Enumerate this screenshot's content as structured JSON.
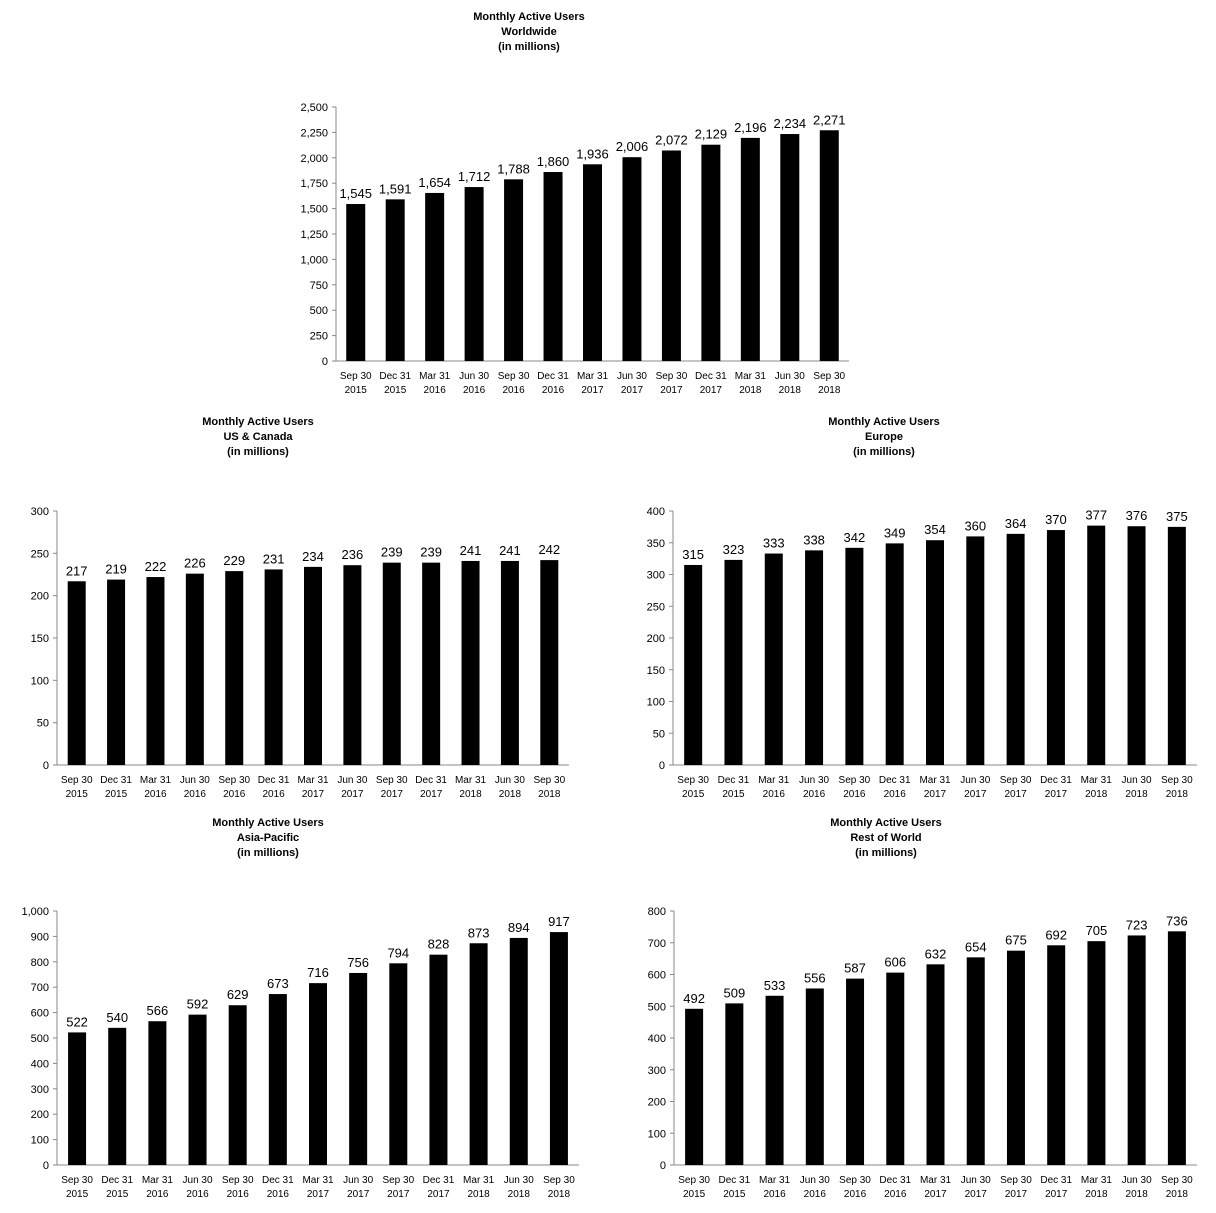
{
  "chart_data": [
    {
      "id": "worldwide",
      "type": "bar",
      "title": [
        "Monthly Active Users",
        "Worldwide",
        "(in millions)"
      ],
      "categories": [
        [
          "Sep 30",
          "2015"
        ],
        [
          "Dec 31",
          "2015"
        ],
        [
          "Mar 31",
          "2016"
        ],
        [
          "Jun 30",
          "2016"
        ],
        [
          "Sep 30",
          "2016"
        ],
        [
          "Dec 31",
          "2016"
        ],
        [
          "Mar 31",
          "2017"
        ],
        [
          "Jun 30",
          "2017"
        ],
        [
          "Sep 30",
          "2017"
        ],
        [
          "Dec 31",
          "2017"
        ],
        [
          "Mar 31",
          "2018"
        ],
        [
          "Jun 30",
          "2018"
        ],
        [
          "Sep 30",
          "2018"
        ]
      ],
      "values": [
        1545,
        1591,
        1654,
        1712,
        1788,
        1860,
        1936,
        2006,
        2072,
        2129,
        2196,
        2234,
        2271
      ],
      "value_labels": [
        "1,545",
        "1,591",
        "1,654",
        "1,712",
        "1,788",
        "1,860",
        "1,936",
        "2,006",
        "2,072",
        "2,129",
        "2,196",
        "2,234",
        "2,271"
      ],
      "ylim": [
        0,
        2500
      ],
      "yticks": [
        0,
        250,
        500,
        750,
        1000,
        1250,
        1500,
        1750,
        2000,
        2250,
        2500
      ],
      "ytick_labels": [
        "0",
        "250",
        "500",
        "750",
        "1,000",
        "1,250",
        "1,500",
        "1,750",
        "2,000",
        "2,250",
        "2,500"
      ],
      "grid": false,
      "bar_color": "#000000"
    },
    {
      "id": "us-canada",
      "type": "bar",
      "title": [
        "Monthly Active Users",
        "US & Canada",
        "(in millions)"
      ],
      "categories": [
        [
          "Sep 30",
          "2015"
        ],
        [
          "Dec 31",
          "2015"
        ],
        [
          "Mar 31",
          "2016"
        ],
        [
          "Jun 30",
          "2016"
        ],
        [
          "Sep 30",
          "2016"
        ],
        [
          "Dec 31",
          "2016"
        ],
        [
          "Mar 31",
          "2017"
        ],
        [
          "Jun 30",
          "2017"
        ],
        [
          "Sep 30",
          "2017"
        ],
        [
          "Dec 31",
          "2017"
        ],
        [
          "Mar 31",
          "2018"
        ],
        [
          "Jun 30",
          "2018"
        ],
        [
          "Sep 30",
          "2018"
        ]
      ],
      "values": [
        217,
        219,
        222,
        226,
        229,
        231,
        234,
        236,
        239,
        239,
        241,
        241,
        242
      ],
      "value_labels": [
        "217",
        "219",
        "222",
        "226",
        "229",
        "231",
        "234",
        "236",
        "239",
        "239",
        "241",
        "241",
        "242"
      ],
      "ylim": [
        0,
        300
      ],
      "yticks": [
        0,
        50,
        100,
        150,
        200,
        250,
        300
      ],
      "ytick_labels": [
        "0",
        "50",
        "100",
        "150",
        "200",
        "250",
        "300"
      ],
      "grid": false,
      "bar_color": "#000000"
    },
    {
      "id": "europe",
      "type": "bar",
      "title": [
        "Monthly Active Users",
        "Europe",
        "(in millions)"
      ],
      "categories": [
        [
          "Sep 30",
          "2015"
        ],
        [
          "Dec 31",
          "2015"
        ],
        [
          "Mar 31",
          "2016"
        ],
        [
          "Jun 30",
          "2016"
        ],
        [
          "Sep 30",
          "2016"
        ],
        [
          "Dec 31",
          "2016"
        ],
        [
          "Mar 31",
          "2017"
        ],
        [
          "Jun 30",
          "2017"
        ],
        [
          "Sep 30",
          "2017"
        ],
        [
          "Dec 31",
          "2017"
        ],
        [
          "Mar 31",
          "2018"
        ],
        [
          "Jun 30",
          "2018"
        ],
        [
          "Sep 30",
          "2018"
        ]
      ],
      "values": [
        315,
        323,
        333,
        338,
        342,
        349,
        354,
        360,
        364,
        370,
        377,
        376,
        375
      ],
      "value_labels": [
        "315",
        "323",
        "333",
        "338",
        "342",
        "349",
        "354",
        "360",
        "364",
        "370",
        "377",
        "376",
        "375"
      ],
      "ylim": [
        0,
        400
      ],
      "yticks": [
        0,
        50,
        100,
        150,
        200,
        250,
        300,
        350,
        400
      ],
      "ytick_labels": [
        "0",
        "50",
        "100",
        "150",
        "200",
        "250",
        "300",
        "350",
        "400"
      ],
      "grid": false,
      "bar_color": "#000000"
    },
    {
      "id": "asia-pacific",
      "type": "bar",
      "title": [
        "Monthly Active Users",
        "Asia-Pacific",
        "(in millions)"
      ],
      "categories": [
        [
          "Sep 30",
          "2015"
        ],
        [
          "Dec 31",
          "2015"
        ],
        [
          "Mar 31",
          "2016"
        ],
        [
          "Jun 30",
          "2016"
        ],
        [
          "Sep 30",
          "2016"
        ],
        [
          "Dec 31",
          "2016"
        ],
        [
          "Mar 31",
          "2017"
        ],
        [
          "Jun 30",
          "2017"
        ],
        [
          "Sep 30",
          "2017"
        ],
        [
          "Dec 31",
          "2017"
        ],
        [
          "Mar 31",
          "2018"
        ],
        [
          "Jun 30",
          "2018"
        ],
        [
          "Sep 30",
          "2018"
        ]
      ],
      "values": [
        522,
        540,
        566,
        592,
        629,
        673,
        716,
        756,
        794,
        828,
        873,
        894,
        917
      ],
      "value_labels": [
        "522",
        "540",
        "566",
        "592",
        "629",
        "673",
        "716",
        "756",
        "794",
        "828",
        "873",
        "894",
        "917"
      ],
      "ylim": [
        0,
        1000
      ],
      "yticks": [
        0,
        100,
        200,
        300,
        400,
        500,
        600,
        700,
        800,
        900,
        1000
      ],
      "ytick_labels": [
        "0",
        "100",
        "200",
        "300",
        "400",
        "500",
        "600",
        "700",
        "800",
        "900",
        "1,000"
      ],
      "grid": false,
      "bar_color": "#000000"
    },
    {
      "id": "rest-of-world",
      "type": "bar",
      "title": [
        "Monthly Active Users",
        "Rest of World",
        "(in millions)"
      ],
      "categories": [
        [
          "Sep 30",
          "2015"
        ],
        [
          "Dec 31",
          "2015"
        ],
        [
          "Mar 31",
          "2016"
        ],
        [
          "Jun 30",
          "2016"
        ],
        [
          "Sep 30",
          "2016"
        ],
        [
          "Dec 31",
          "2016"
        ],
        [
          "Mar 31",
          "2017"
        ],
        [
          "Jun 30",
          "2017"
        ],
        [
          "Sep 30",
          "2017"
        ],
        [
          "Dec 31",
          "2017"
        ],
        [
          "Mar 31",
          "2018"
        ],
        [
          "Jun 30",
          "2018"
        ],
        [
          "Sep 30",
          "2018"
        ]
      ],
      "values": [
        492,
        509,
        533,
        556,
        587,
        606,
        632,
        654,
        675,
        692,
        705,
        723,
        736
      ],
      "value_labels": [
        "492",
        "509",
        "533",
        "556",
        "587",
        "606",
        "632",
        "654",
        "675",
        "692",
        "705",
        "723",
        "736"
      ],
      "ylim": [
        0,
        800
      ],
      "yticks": [
        0,
        100,
        200,
        300,
        400,
        500,
        600,
        700,
        800
      ],
      "ytick_labels": [
        "0",
        "100",
        "200",
        "300",
        "400",
        "500",
        "600",
        "700",
        "800"
      ],
      "grid": false,
      "bar_color": "#000000"
    }
  ]
}
